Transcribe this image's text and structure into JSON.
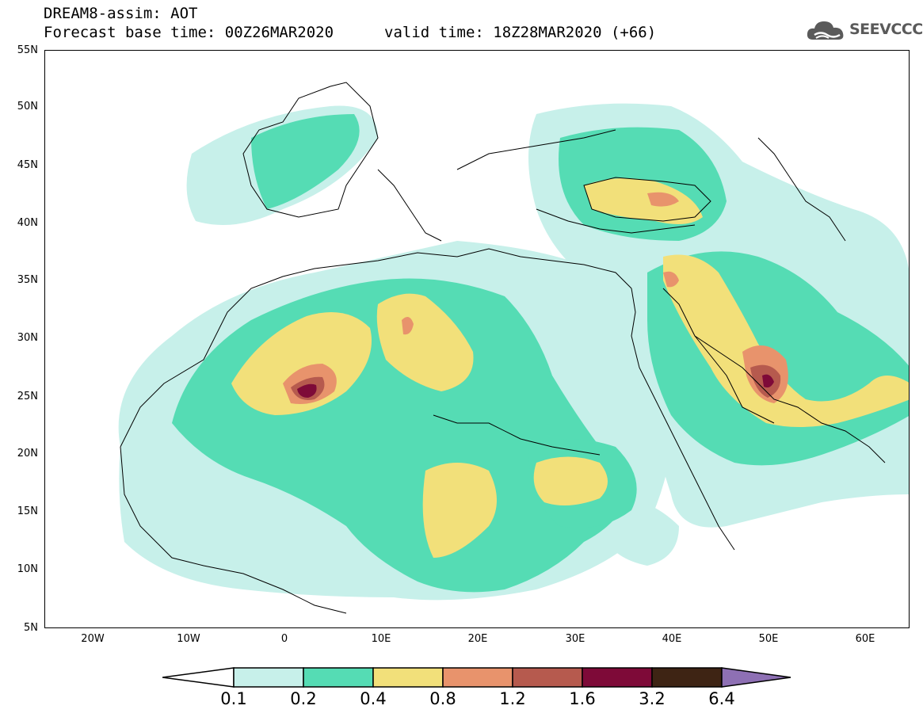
{
  "header": {
    "line1": "DREAM8-assim: AOT",
    "line2": "Forecast base time: 00Z26MAR2020",
    "valid": "valid time: 18Z28MAR2020 (+66)"
  },
  "logo": {
    "text": "SEEVCCC",
    "icon": "cloud-icon"
  },
  "map": {
    "lat_labels": [
      "55N",
      "50N",
      "45N",
      "40N",
      "35N",
      "30N",
      "25N",
      "20N",
      "15N",
      "10N",
      "5N"
    ],
    "lon_labels": [
      "20W",
      "10W",
      "0",
      "10E",
      "20E",
      "30E",
      "40E",
      "50E",
      "60E"
    ],
    "lon_range": [
      "25W",
      "65E"
    ],
    "lat_range": [
      "5N",
      "55N"
    ]
  },
  "legend": {
    "labels": [
      "0.1",
      "0.2",
      "0.4",
      "0.8",
      "1.2",
      "1.6",
      "3.2",
      "6.4"
    ],
    "colors": [
      "#ffffff",
      "#c7f0ea",
      "#55dcb4",
      "#f2e07a",
      "#e8936c",
      "#b65a4e",
      "#7e0a38",
      "#3e2414",
      "#8e70b4"
    ]
  }
}
